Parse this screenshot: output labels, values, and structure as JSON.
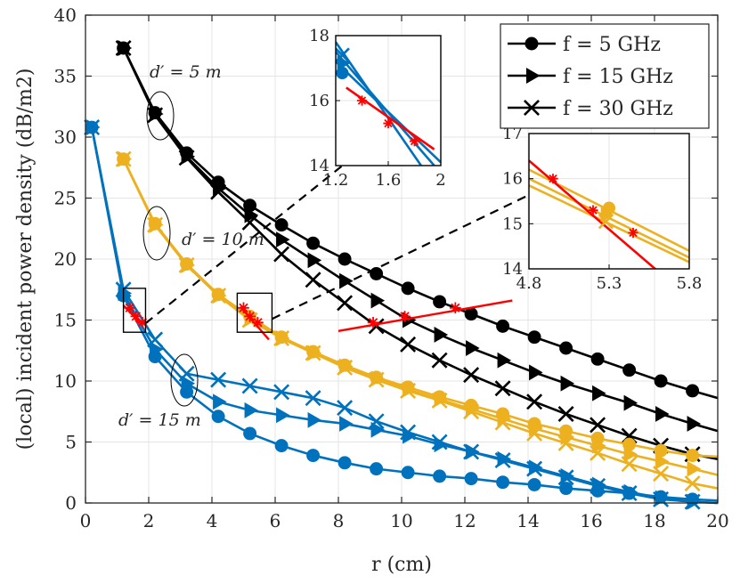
{
  "chart_data": {
    "type": "line",
    "xlabel": "r (cm)",
    "ylabel": "(local) incident power density (dB/m2)",
    "xlim": [
      0,
      20
    ],
    "ylim": [
      0,
      40
    ],
    "xticks": [
      0,
      2,
      4,
      6,
      8,
      10,
      12,
      14,
      16,
      18,
      20
    ],
    "yticks": [
      0,
      5,
      10,
      15,
      20,
      25,
      30,
      35,
      40
    ],
    "grid": true,
    "legend": {
      "position": "top-right",
      "entries": [
        {
          "label": "f = 5 GHz",
          "marker": "circle"
        },
        {
          "label": "f = 15 GHz",
          "marker": "triangle-right"
        },
        {
          "label": "f = 30 GHz",
          "marker": "x"
        }
      ]
    },
    "colors": {
      "d5": "#000000",
      "d10": "#EDB120",
      "d15": "#0072BD",
      "fit": "#FF0000"
    },
    "annotations": [
      {
        "id": "d5",
        "text": "d′ = 5 m"
      },
      {
        "id": "d10",
        "text": "d′ = 10 m"
      },
      {
        "id": "d15",
        "text": "d′ = 15 m"
      }
    ],
    "groups": [
      {
        "distance": "d′ = 5 m",
        "color": "#000000",
        "series": [
          {
            "name": "f = 5 GHz",
            "marker": "circle",
            "x": [
              1.2,
              2.2,
              3.2,
              4.2,
              5.2,
              6.2,
              7.2,
              8.2,
              9.2,
              10.2,
              11.2,
              12.2,
              13.2,
              14.2,
              15.2,
              16.2,
              17.2,
              18.2,
              19.2,
              20
            ],
            "y": [
              37.3,
              32,
              28.7,
              26.3,
              24.4,
              22.8,
              21.3,
              20,
              18.8,
              17.6,
              16.5,
              15.5,
              14.5,
              13.6,
              12.7,
              11.8,
              10.9,
              10,
              9.2,
              8.6
            ]
          },
          {
            "name": "f = 15 GHz",
            "marker": "triangle-right",
            "x": [
              1.2,
              2.2,
              3.2,
              4.2,
              5.2,
              6.2,
              7.2,
              8.2,
              9.2,
              10.2,
              11.2,
              12.2,
              13.2,
              14.2,
              15.2,
              16.2,
              17.2,
              18.2,
              19.2,
              20
            ],
            "y": [
              37.3,
              31.9,
              28.4,
              25.8,
              23.6,
              21.6,
              19.9,
              18.2,
              16.6,
              15,
              13.8,
              12.7,
              11.7,
              10.7,
              9.8,
              9,
              8.2,
              7.3,
              6.5,
              5.9
            ]
          },
          {
            "name": "f = 30 GHz",
            "marker": "x",
            "x": [
              1.2,
              2.2,
              3.2,
              4.2,
              5.2,
              6.2,
              7.2,
              8.2,
              9.2,
              10.2,
              11.2,
              12.2,
              13.2,
              14.2,
              15.2,
              16.2,
              17.2,
              18.2,
              19.2,
              20
            ],
            "y": [
              37.3,
              31.8,
              28.3,
              25.5,
              23,
              20.4,
              18.3,
              16.4,
              14.5,
              13,
              11.7,
              10.5,
              9.4,
              8.3,
              7.3,
              6.4,
              5.5,
              4.7,
              4,
              3.6
            ]
          }
        ]
      },
      {
        "distance": "d′ = 10 m",
        "color": "#EDB120",
        "series": [
          {
            "name": "f = 5 GHz",
            "marker": "circle",
            "x": [
              1.2,
              2.2,
              3.2,
              4.2,
              5.2,
              6.2,
              7.2,
              8.2,
              9.2,
              10.2,
              11.2,
              12.2,
              13.2,
              14.2,
              15.2,
              16.2,
              17.2,
              18.2,
              19.2,
              20
            ],
            "y": [
              28.2,
              22.9,
              19.6,
              17.1,
              15.3,
              13.6,
              12.4,
              11.3,
              10.3,
              9.5,
              8.7,
              8,
              7.3,
              6.5,
              5.9,
              5.3,
              4.8,
              4.3,
              3.9,
              3.8
            ]
          },
          {
            "name": "f = 15 GHz",
            "marker": "triangle-right",
            "x": [
              1.2,
              2.2,
              3.2,
              4.2,
              5.2,
              6.2,
              7.2,
              8.2,
              9.2,
              10.2,
              11.2,
              12.2,
              13.2,
              14.2,
              15.2,
              16.2,
              17.2,
              18.2,
              19.2,
              20
            ],
            "y": [
              28.2,
              22.8,
              19.5,
              17,
              15.1,
              13.5,
              12.3,
              11.2,
              10.2,
              9.3,
              8.5,
              7.7,
              6.9,
              6.1,
              5.4,
              4.7,
              4,
              3.4,
              2.8,
              2.3
            ]
          },
          {
            "name": "f = 30 GHz",
            "marker": "x",
            "x": [
              1.2,
              2.2,
              3.2,
              4.2,
              5.2,
              6.2,
              7.2,
              8.2,
              9.2,
              10.2,
              11.2,
              12.2,
              13.2,
              14.2,
              15.2,
              16.2,
              17.2,
              18.2,
              19.2,
              20
            ],
            "y": [
              28.2,
              22.8,
              19.5,
              17,
              15,
              13.5,
              12.3,
              11.1,
              10.1,
              9.2,
              8.4,
              7.5,
              6.6,
              5.7,
              4.9,
              4.1,
              3.2,
              2.4,
              1.6,
              1.2
            ]
          }
        ]
      },
      {
        "distance": "d′ = 15 m",
        "color": "#0072BD",
        "series": [
          {
            "name": "f = 5 GHz",
            "marker": "circle",
            "x": [
              0.2,
              1.2,
              2.2,
              3.2,
              4.2,
              5.2,
              6.2,
              7.2,
              8.2,
              9.2,
              10.2,
              11.2,
              12.2,
              13.2,
              14.2,
              15.2,
              16.2,
              17.2,
              18.2,
              19.2,
              20
            ],
            "y": [
              30.8,
              17,
              12,
              9.1,
              7.1,
              5.7,
              4.7,
              3.9,
              3.3,
              2.8,
              2.5,
              2.2,
              2,
              1.7,
              1.5,
              1.2,
              1,
              0.8,
              0.5,
              0.3,
              0.2
            ]
          },
          {
            "name": "f = 15 GHz",
            "marker": "triangle-right",
            "x": [
              0.2,
              1.2,
              2.2,
              3.2,
              4.2,
              5.2,
              6.2,
              7.2,
              8.2,
              9.2,
              10.2,
              11.2,
              12.2,
              13.2,
              14.2,
              15.2,
              16.2,
              17.2,
              18.2,
              19.2,
              20
            ],
            "y": [
              30.8,
              17.2,
              12.6,
              9.8,
              8.3,
              7.6,
              7.2,
              6.8,
              6.5,
              6,
              5.5,
              4.8,
              4.2,
              3.6,
              2.9,
              2.2,
              1.5,
              0.9,
              0.4,
              0.1,
              0
            ]
          },
          {
            "name": "f = 30 GHz",
            "marker": "x",
            "x": [
              0.2,
              1.2,
              2.2,
              3.2,
              4.2,
              5.2,
              6.2,
              7.2,
              8.2,
              9.2,
              10.2,
              11.2,
              12.2,
              13.2,
              14.2,
              15.2,
              16.2,
              17.2,
              18.2,
              19.2,
              20
            ],
            "y": [
              30.8,
              17.5,
              13.4,
              10.6,
              10.1,
              9.6,
              9.1,
              8.6,
              7.8,
              6.7,
              5.8,
              5,
              4.2,
              3.5,
              2.8,
              2.1,
              1.4,
              0.8,
              0.3,
              0.1,
              0
            ]
          }
        ]
      }
    ],
    "fit_lines": [
      {
        "x": [
          1.2,
          1.8
        ],
        "y": [
          16.2,
          14.6
        ],
        "points_x": [
          1.4,
          1.6,
          1.8
        ],
        "points_y": [
          16,
          15.3,
          14.8
        ]
      },
      {
        "x": [
          4.9,
          5.8
        ],
        "y": [
          16.1,
          13.4
        ],
        "points_x": [
          5,
          5.2,
          5.45
        ],
        "points_y": [
          16,
          15.3,
          14.8
        ]
      },
      {
        "x": [
          8,
          13.5
        ],
        "y": [
          14.1,
          16.6
        ],
        "points_x": [
          9.1,
          10.1,
          11.7
        ],
        "points_y": [
          14.8,
          15.3,
          16
        ]
      }
    ],
    "insets": [
      {
        "id": "inset-a",
        "xlim": [
          1.2,
          2
        ],
        "ylim": [
          14,
          18
        ],
        "xticks": [
          1.2,
          1.6,
          2
        ],
        "xtick_labels": [
          "1.2",
          "1.6",
          "2"
        ],
        "yticks": [
          14,
          16,
          18
        ],
        "ytick_labels": [
          "14",
          "16",
          "18"
        ],
        "lines": [
          {
            "color": "#0072BD",
            "x": [
              1.2,
              1.85
            ],
            "y": [
              17.8,
              14
            ]
          },
          {
            "color": "#0072BD",
            "x": [
              1.2,
              1.95
            ],
            "y": [
              17.5,
              14
            ]
          },
          {
            "color": "#0072BD",
            "x": [
              1.2,
              2
            ],
            "y": [
              17.2,
              14.1
            ]
          },
          {
            "color": "#FF0000",
            "x": [
              1.28,
              1.95
            ],
            "y": [
              16.4,
              14.5
            ]
          }
        ],
        "markers": [
          {
            "type": "x",
            "color": "#0072BD",
            "x": 1.25,
            "y": 17.4
          },
          {
            "type": "triangle-right",
            "color": "#0072BD",
            "x": 1.25,
            "y": 17.15
          },
          {
            "type": "circle",
            "color": "#0072BD",
            "x": 1.25,
            "y": 16.85
          },
          {
            "type": "star",
            "color": "#FF0000",
            "x": 1.4,
            "y": 16
          },
          {
            "type": "star",
            "color": "#FF0000",
            "x": 1.6,
            "y": 15.3
          },
          {
            "type": "star",
            "color": "#FF0000",
            "x": 1.8,
            "y": 14.75
          }
        ]
      },
      {
        "id": "inset-b",
        "xlim": [
          4.8,
          5.8
        ],
        "ylim": [
          14,
          17
        ],
        "xticks": [
          4.8,
          5.3,
          5.8
        ],
        "xtick_labels": [
          "4.8",
          "5.3",
          "5.8"
        ],
        "yticks": [
          14,
          15,
          16,
          17
        ],
        "ytick_labels": [
          "14",
          "15",
          "16",
          "17"
        ],
        "lines": [
          {
            "color": "#EDB120",
            "x": [
              4.8,
              5.8
            ],
            "y": [
              16.2,
              14.4
            ]
          },
          {
            "color": "#EDB120",
            "x": [
              4.8,
              5.8
            ],
            "y": [
              16.0,
              14.25
            ]
          },
          {
            "color": "#EDB120",
            "x": [
              4.8,
              5.8
            ],
            "y": [
              15.85,
              14.15
            ]
          },
          {
            "color": "#FF0000",
            "x": [
              4.8,
              5.62
            ],
            "y": [
              16.4,
              13.9
            ]
          }
        ],
        "markers": [
          {
            "type": "circle",
            "color": "#EDB120",
            "x": 5.3,
            "y": 15.35
          },
          {
            "type": "triangle-right",
            "color": "#EDB120",
            "x": 5.28,
            "y": 15.2
          },
          {
            "type": "x",
            "color": "#EDB120",
            "x": 5.28,
            "y": 15.05
          },
          {
            "type": "star",
            "color": "#FF0000",
            "x": 4.95,
            "y": 16
          },
          {
            "type": "star",
            "color": "#FF0000",
            "x": 5.2,
            "y": 15.3
          },
          {
            "type": "star",
            "color": "#FF0000",
            "x": 5.45,
            "y": 14.8
          }
        ]
      }
    ],
    "zoom_regions": [
      {
        "x": [
          1.2,
          1.9
        ],
        "y": [
          14,
          17.6
        ]
      },
      {
        "x": [
          4.8,
          5.9
        ],
        "y": [
          14,
          17.2
        ]
      }
    ]
  }
}
